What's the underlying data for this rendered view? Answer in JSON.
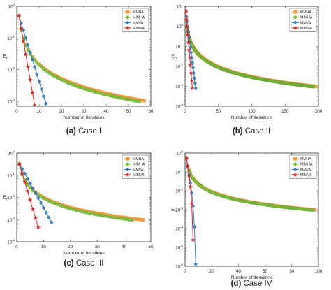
{
  "chart_data": [
    {
      "type": "line",
      "caption_letter": "(a)",
      "caption_text": "Case I",
      "ylabel": "E",
      "ylabel_sub": "n",
      "xlabel": "Number of iterations",
      "yscale": "log",
      "xlim": [
        0,
        60
      ],
      "xticks": [
        "0",
        "10",
        "20",
        "30",
        "40",
        "50",
        "60"
      ],
      "ylim": [
        0.0007,
        1
      ],
      "yticks": [
        {
          "v": 1,
          "e": "0"
        },
        {
          "v": 0.1,
          "e": "-1"
        },
        {
          "v": 0.01,
          "e": "-2"
        },
        {
          "v": 0.001,
          "e": "-3"
        }
      ],
      "legend": "top-right",
      "series": [
        {
          "name": "MMHA",
          "color": "#f39a3b",
          "marker": "square",
          "n": 57,
          "y0": 0.5,
          "yend": 0.00105,
          "shape": "power"
        },
        {
          "name": "MIMHA",
          "color": "#80c342",
          "marker": "circle",
          "n": 55,
          "y0": 0.5,
          "yend": 0.00098,
          "shape": "power"
        },
        {
          "name": "MMVA",
          "color": "#3a82c4",
          "marker": "diamond",
          "n": 13,
          "y0": 0.5,
          "yend": 0.00085,
          "shape": "exp"
        },
        {
          "name": "MIMVA",
          "color": "#d62a2a",
          "marker": "star",
          "n": 8,
          "y0": 0.5,
          "yend": 0.00075,
          "shape": "exp"
        }
      ]
    },
    {
      "type": "line",
      "caption_letter": "(b)",
      "caption_text": "Case II",
      "ylabel": "E",
      "ylabel_sub": "n",
      "xlabel": "Number of iterations",
      "yscale": "log",
      "xlim": [
        0,
        200
      ],
      "xticks": [
        "0",
        "50",
        "100",
        "150",
        "200"
      ],
      "ylim": [
        0.0001,
        10
      ],
      "yticks": [
        {
          "v": 10,
          "e": "1"
        },
        {
          "v": 1,
          "e": "0"
        },
        {
          "v": 0.1,
          "e": "-1"
        },
        {
          "v": 0.01,
          "e": "-2"
        },
        {
          "v": 0.001,
          "e": "-3"
        },
        {
          "v": 0.0001,
          "e": "-4"
        }
      ],
      "legend": "top-right",
      "series": [
        {
          "name": "MMHA",
          "color": "#f39a3b",
          "marker": "square",
          "n": 196,
          "y0": 5.5,
          "yend": 0.00098,
          "shape": "power"
        },
        {
          "name": "MIMHA",
          "color": "#80c342",
          "marker": "circle",
          "n": 193,
          "y0": 5.5,
          "yend": 0.00094,
          "shape": "power"
        },
        {
          "name": "MMVA",
          "color": "#3a82c4",
          "marker": "diamond",
          "n": 16,
          "y0": 5.5,
          "yend": 0.00078,
          "shape": "exp"
        },
        {
          "name": "MIMVA",
          "color": "#d62a2a",
          "marker": "star",
          "n": 11,
          "y0": 5.5,
          "yend": 0.00078,
          "shape": "exp"
        }
      ]
    },
    {
      "type": "line",
      "caption_letter": "(c)",
      "caption_text": "Case III",
      "ylabel": "E",
      "ylabel_sub": "n",
      "xlabel": "Number of iterations",
      "yscale": "log",
      "xlim": [
        0,
        50
      ],
      "xticks": [
        "0",
        "10",
        "20",
        "30",
        "40",
        "50"
      ],
      "ylim": [
        0.0001,
        1
      ],
      "yticks": [
        {
          "v": 1,
          "e": "0"
        },
        {
          "v": 0.1,
          "e": "-1"
        },
        {
          "v": 0.01,
          "e": "-2"
        },
        {
          "v": 0.001,
          "e": "-3"
        },
        {
          "v": 0.0001,
          "e": "-4"
        }
      ],
      "legend": "top-right",
      "series": [
        {
          "name": "MMHA",
          "color": "#f39a3b",
          "marker": "square",
          "n": 47,
          "y0": 0.32,
          "yend": 0.00098,
          "shape": "power"
        },
        {
          "name": "MIMHA",
          "color": "#80c342",
          "marker": "circle",
          "n": 43,
          "y0": 0.32,
          "yend": 0.00095,
          "shape": "power"
        },
        {
          "name": "MMVA",
          "color": "#3a82c4",
          "marker": "diamond",
          "n": 13,
          "y0": 0.32,
          "yend": 0.00075,
          "shape": "exp"
        },
        {
          "name": "MIMVA",
          "color": "#d62a2a",
          "marker": "star",
          "n": 8,
          "y0": 0.32,
          "yend": 0.00045,
          "shape": "exp"
        }
      ]
    },
    {
      "type": "line",
      "caption_letter": "(d)",
      "caption_text": "Case IV",
      "ylabel": "E",
      "ylabel_sub": "n",
      "xlabel": "Number of iterations",
      "yscale": "log",
      "xlim": [
        0,
        100
      ],
      "xticks": [
        "0",
        "20",
        "40",
        "60",
        "80",
        "100"
      ],
      "ylim": [
        1e-06,
        1
      ],
      "yticks": [
        {
          "v": 1,
          "e": "0"
        },
        {
          "v": 0.1,
          "e": "-1"
        },
        {
          "v": 0.01,
          "e": "-2"
        },
        {
          "v": 0.001,
          "e": "-3"
        },
        {
          "v": 0.0001,
          "e": "-4"
        },
        {
          "v": 1e-05,
          "e": "-5"
        },
        {
          "v": 1e-06,
          "e": "-6"
        }
      ],
      "legend": "top-right",
      "series": [
        {
          "name": "MMHA",
          "color": "#f39a3b",
          "marker": "square",
          "n": 97,
          "y0": 0.55,
          "yend": 0.00098,
          "shape": "power"
        },
        {
          "name": "MIMHA",
          "color": "#80c342",
          "marker": "circle",
          "n": 96,
          "y0": 0.55,
          "yend": 0.00094,
          "shape": "power"
        },
        {
          "name": "MMVA",
          "color": "#3a82c4",
          "marker": "diamond",
          "n": 8,
          "y0": 0.55,
          "yend": 1.3e-06,
          "shape": "plunge"
        },
        {
          "name": "MIMVA",
          "color": "#d62a2a",
          "marker": "star",
          "n": 6,
          "y0": 0.55,
          "yend": 2.5e-05,
          "shape": "plunge"
        }
      ]
    }
  ]
}
